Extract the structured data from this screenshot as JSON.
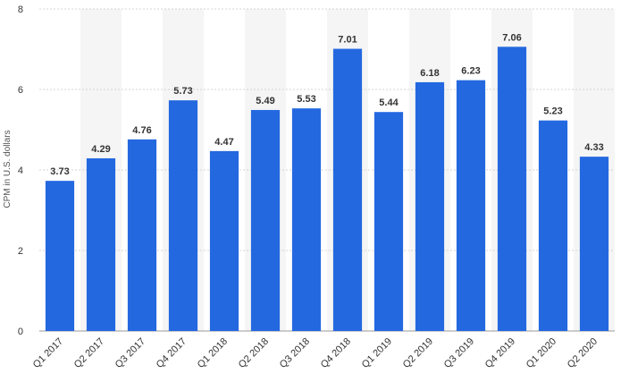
{
  "chart_data": {
    "type": "bar",
    "categories": [
      "Q1 2017",
      "Q2 2017",
      "Q3 2017",
      "Q4 2017",
      "Q1 2018",
      "Q2 2018",
      "Q3 2018",
      "Q4 2018",
      "Q1 2019",
      "Q2 2019",
      "Q3 2019",
      "Q4 2019",
      "Q1 2020",
      "Q2 2020"
    ],
    "values": [
      3.73,
      4.29,
      4.76,
      5.73,
      4.47,
      5.49,
      5.53,
      7.01,
      5.44,
      6.18,
      6.23,
      7.06,
      5.23,
      4.33
    ],
    "value_labels": [
      "3.73",
      "4.29",
      "4.76",
      "5.73",
      "4.47",
      "5.49",
      "5.53",
      "7.01",
      "5.44",
      "6.18",
      "6.23",
      "7.06",
      "5.23",
      "4.33"
    ],
    "title": "",
    "xlabel": "",
    "ylabel": "CPM in U.S. dollars",
    "ylim": [
      0,
      8
    ],
    "yticks": [
      0,
      2,
      4,
      6,
      8
    ],
    "ytick_labels": [
      "0",
      "2",
      "4",
      "6",
      "8"
    ],
    "grid": true,
    "legend": "none",
    "bar_color": "#2468e0",
    "alternate_band_color": "#f5f5f5"
  }
}
